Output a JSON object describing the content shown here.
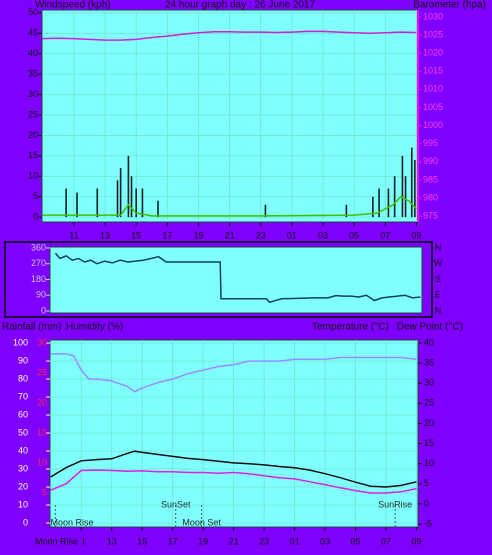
{
  "chart_data": [
    {
      "type": "combo",
      "title": "24 hour graph day : 26 June 2017",
      "y_label": "Windspeed (kph)",
      "y2_label": "Barometer (hpa)",
      "xlim": [
        8.95,
        33.1
      ],
      "xticks": [
        11,
        13,
        15,
        17,
        19,
        21,
        23,
        {
          "value": 25,
          "label": "01"
        },
        {
          "value": 27,
          "label": "03"
        },
        {
          "value": 29,
          "label": "05"
        },
        {
          "value": 31,
          "label": "07"
        },
        {
          "value": 33,
          "label": "09"
        }
      ],
      "ylim": [
        -1.2,
        50.7
      ],
      "yticks": [
        0,
        5,
        10,
        15,
        20,
        25,
        30,
        35,
        40,
        45,
        50
      ],
      "y2lim": [
        973.4,
        1031.9
      ],
      "y2ticks": [
        975,
        980,
        985,
        990,
        995,
        1000,
        1005,
        1010,
        1015,
        1020,
        1025,
        1030
      ],
      "grid": true,
      "series": [
        {
          "mark": "line",
          "axis": "y2",
          "color": "#d020d0",
          "x": [
            9,
            10,
            11,
            12,
            13,
            14,
            15,
            16,
            17,
            18,
            19,
            20,
            21,
            22,
            23,
            24,
            25,
            26,
            27,
            28,
            29,
            30,
            31,
            32,
            33
          ],
          "values": [
            1024.0,
            1024.1,
            1024.0,
            1023.8,
            1023.6,
            1023.6,
            1023.8,
            1024.3,
            1024.7,
            1025.2,
            1025.6,
            1025.9,
            1025.9,
            1025.8,
            1025.8,
            1025.7,
            1025.8,
            1026.0,
            1026.0,
            1025.8,
            1025.6,
            1025.5,
            1025.6,
            1025.8,
            1025.7
          ]
        },
        {
          "mark": "spike",
          "axis": "y",
          "color": "#102020",
          "x": [
            10.5,
            11.2,
            12.5,
            13.8,
            14.0,
            14.5,
            14.7,
            15.0,
            15.4,
            16.4,
            23.3,
            28.5,
            30.2,
            30.6,
            31.2,
            31.6,
            32.1,
            32.3,
            32.7,
            32.9
          ],
          "values": [
            7,
            6,
            7,
            9,
            12,
            15,
            10,
            7,
            7,
            4,
            3,
            3,
            5,
            7,
            7,
            10,
            15,
            10,
            17,
            14
          ]
        },
        {
          "mark": "line",
          "axis": "y",
          "color": "#40c000",
          "x": [
            9,
            14,
            14.5,
            15,
            16,
            23,
            29,
            30.5,
            31.5,
            32,
            32.5,
            33
          ],
          "values": [
            0.5,
            0.5,
            3,
            1,
            0.3,
            0.3,
            0.5,
            1,
            3,
            5,
            4,
            2
          ]
        }
      ]
    },
    {
      "type": "line",
      "xlim": [
        8.95,
        33.1
      ],
      "ylim": [
        -11.4,
        365.7
      ],
      "yticks": [
        0,
        90,
        180,
        270,
        360
      ],
      "y2lim": [
        -11.4,
        365.7
      ],
      "y2ticks": [
        {
          "value": 360,
          "label": "N"
        },
        {
          "value": 270,
          "label": "W"
        },
        {
          "value": 180,
          "label": "S"
        },
        {
          "value": 90,
          "label": "E"
        },
        {
          "value": 0,
          "label": "N"
        }
      ],
      "series": [
        {
          "mark": "line",
          "axis": "y",
          "color": "#104060",
          "x": [
            9.3,
            9.6,
            10,
            10.4,
            10.8,
            11.2,
            11.6,
            12,
            12.5,
            13,
            13.5,
            14,
            14.5,
            15,
            15.5,
            16,
            16.5,
            17,
            18,
            19,
            20,
            20.05,
            21,
            22,
            23,
            23.2,
            24,
            25,
            26,
            27,
            27.5,
            28,
            28.5,
            29,
            29.5,
            30,
            30.5,
            31,
            31.5,
            32,
            32.5,
            33
          ],
          "values": [
            330,
            300,
            315,
            290,
            300,
            280,
            290,
            270,
            285,
            275,
            290,
            280,
            285,
            290,
            300,
            310,
            280,
            280,
            280,
            280,
            280,
            70,
            70,
            70,
            70,
            50,
            70,
            72,
            75,
            75,
            88,
            85,
            85,
            80,
            90,
            60,
            75,
            80,
            85,
            90,
            75,
            80
          ]
        }
      ]
    },
    {
      "type": "line",
      "axis_titles": [
        "Rainfall (mm)",
        "Humidity (%)",
        "Temperature (°C)",
        "Dew Point (°C)"
      ],
      "xlim": [
        8.95,
        33.1
      ],
      "xticks": [
        11,
        13,
        15,
        17,
        19,
        21,
        23,
        {
          "value": 25,
          "label": "01"
        },
        {
          "value": 27,
          "label": "03"
        },
        {
          "value": 29,
          "label": "05"
        },
        {
          "value": 31,
          "label": "07"
        },
        {
          "value": 33,
          "label": "09"
        }
      ],
      "ylim": [
        -2.2,
        101.7
      ],
      "yticks": [
        0,
        10,
        20,
        30,
        40,
        50,
        60,
        70,
        80,
        90,
        100
      ],
      "y3lim": [
        -0.66,
        30.5
      ],
      "y3ticks": [
        5,
        10,
        15,
        20,
        25,
        30
      ],
      "y2lim": [
        -5.75,
        40.75
      ],
      "y2ticks": [
        -5,
        0,
        5,
        10,
        15,
        20,
        25,
        30,
        35,
        40
      ],
      "grid": true,
      "series": [
        {
          "mark": "line",
          "axis": "y",
          "color": "#9a8cff",
          "x": [
            9,
            10,
            10.5,
            11,
            11.5,
            12,
            13,
            14,
            14.5,
            15,
            16,
            17,
            18,
            19,
            20,
            21,
            22,
            23,
            24,
            25,
            26,
            27,
            28,
            29,
            30,
            31,
            32,
            33
          ],
          "values": [
            94,
            94,
            93,
            85,
            80,
            80,
            79,
            76,
            73,
            75,
            78,
            80,
            83,
            85,
            87,
            88,
            90,
            90,
            90,
            91,
            91,
            91,
            92,
            92,
            92,
            92,
            92,
            91
          ]
        },
        {
          "mark": "line",
          "axis": "y2",
          "color": "#101010",
          "x": [
            9,
            10,
            11,
            12,
            13,
            14,
            14.5,
            15,
            16,
            17,
            18,
            19,
            20,
            21,
            22,
            23,
            24,
            25,
            26,
            27,
            28,
            29,
            30,
            31,
            32,
            33
          ],
          "values": [
            6.7,
            9,
            10.7,
            11,
            11.2,
            12.5,
            13.1,
            12.8,
            12.3,
            11.8,
            11.3,
            11,
            10.6,
            10.2,
            10,
            9.7,
            9.3,
            9,
            8.4,
            7.5,
            6.5,
            5.4,
            4.4,
            4.2,
            4.6,
            5.5
          ]
        },
        {
          "mark": "line",
          "axis": "y2",
          "color": "#e020e0",
          "x": [
            9,
            10,
            11,
            12,
            13,
            14,
            15,
            16,
            17,
            18,
            19,
            20,
            21,
            22,
            23,
            24,
            25,
            26,
            27,
            28,
            29,
            30,
            31,
            32,
            33
          ],
          "values": [
            3.4,
            5,
            8.3,
            8.4,
            8.3,
            8.1,
            8.2,
            8,
            8,
            7.8,
            7.8,
            7.6,
            7.8,
            7.5,
            7,
            6.5,
            6.2,
            5.5,
            4.8,
            4,
            3.3,
            2.7,
            2.7,
            3,
            3.8
          ]
        }
      ],
      "annotations": [
        {
          "text": "Moon Rise",
          "x": 9.3
        },
        {
          "text": "SunSet",
          "x": 17.2
        },
        {
          "text": "Moon Set",
          "x": 18.9
        },
        {
          "text": "SunRise",
          "x": 31.6
        }
      ],
      "axis_annotations": [
        {
          "text": "Moon Rise",
          "x": 9.3
        }
      ]
    }
  ]
}
